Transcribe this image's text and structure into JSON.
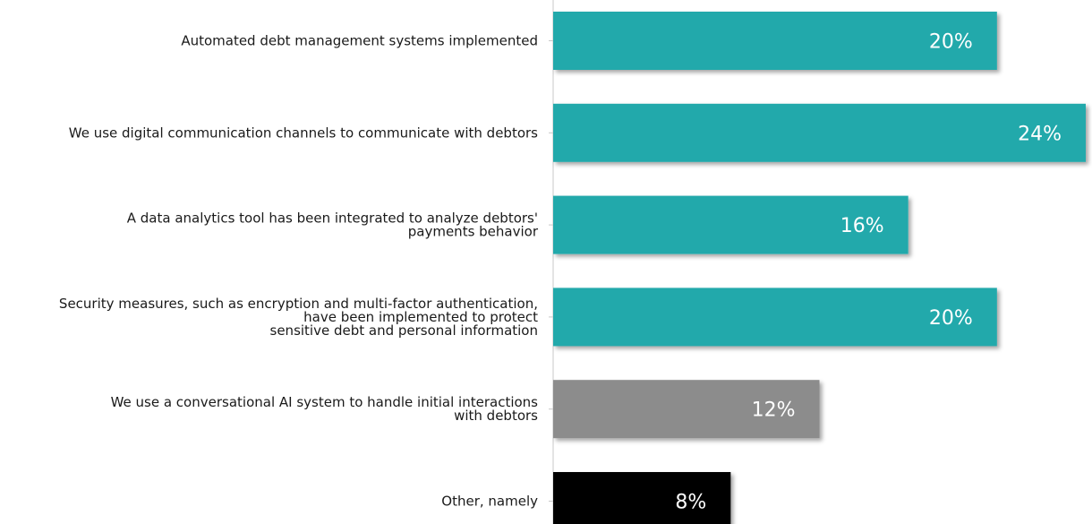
{
  "chart_data": {
    "type": "bar",
    "orientation": "horizontal",
    "categories": [
      [
        "Automated debt management systems implemented"
      ],
      [
        "We use digital communication channels to communicate with debtors"
      ],
      [
        "A data analytics tool has been integrated to analyze debtors'",
        "payments behavior"
      ],
      [
        "Security measures, such as encryption and multi-factor authentication,",
        "have been implemented to protect",
        "sensitive debt and personal information"
      ],
      [
        "We use a conversational AI system to handle initial interactions",
        "with debtors"
      ],
      [
        "Other, namely"
      ]
    ],
    "values": [
      20,
      24,
      16,
      20,
      12,
      8
    ],
    "value_labels": [
      "20%",
      "24%",
      "16%",
      "20%",
      "12%",
      "8%"
    ],
    "bar_colors": [
      "#23a9ab",
      "#23a9ab",
      "#23a9ab",
      "#23a9ab",
      "#8c8c8c",
      "#000000"
    ],
    "xlim": [
      0,
      24
    ],
    "grid": false,
    "legend": "none",
    "title": "",
    "xlabel": "",
    "ylabel": ""
  }
}
